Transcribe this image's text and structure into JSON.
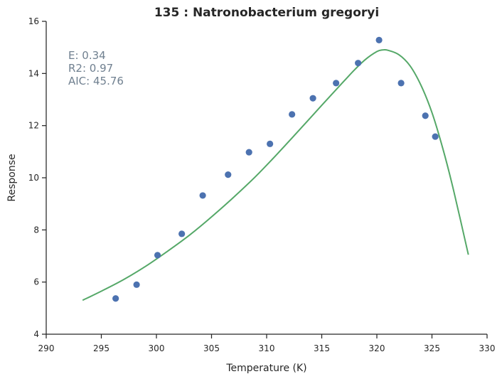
{
  "chart_data": {
    "type": "scatter",
    "title": "135 : Natronobacterium gregoryi",
    "xlabel": "Temperature (K)",
    "ylabel": "Response",
    "xlim": [
      290,
      330
    ],
    "ylim": [
      4,
      16
    ],
    "xticks": [
      "290",
      "295",
      "300",
      "305",
      "310",
      "315",
      "320",
      "325",
      "330"
    ],
    "yticks": [
      "4",
      "6",
      "8",
      "10",
      "12",
      "14",
      "16"
    ],
    "grid": false,
    "stats": {
      "e_label": "E:  0.34",
      "r2_label": "R2:  0.97",
      "aic_label": "AIC: 45.76"
    },
    "colors": {
      "points": "#4c72b0",
      "fit": "#55a868",
      "stats_text": "#708090"
    },
    "points": [
      {
        "x": 296.3,
        "y": 5.37
      },
      {
        "x": 298.2,
        "y": 5.9
      },
      {
        "x": 300.1,
        "y": 7.03
      },
      {
        "x": 302.3,
        "y": 7.85
      },
      {
        "x": 304.2,
        "y": 9.32
      },
      {
        "x": 306.5,
        "y": 10.12
      },
      {
        "x": 308.4,
        "y": 10.98
      },
      {
        "x": 310.3,
        "y": 11.3
      },
      {
        "x": 312.3,
        "y": 12.43
      },
      {
        "x": 314.2,
        "y": 13.05
      },
      {
        "x": 316.3,
        "y": 13.63
      },
      {
        "x": 318.3,
        "y": 14.4
      },
      {
        "x": 320.2,
        "y": 15.28
      },
      {
        "x": 322.2,
        "y": 13.63
      },
      {
        "x": 324.4,
        "y": 12.38
      },
      {
        "x": 325.3,
        "y": 11.58
      }
    ],
    "fit_curve": [
      {
        "x": 293.3,
        "y": 5.3
      },
      {
        "x": 295.0,
        "y": 5.65
      },
      {
        "x": 297.0,
        "y": 6.09
      },
      {
        "x": 299.0,
        "y": 6.6
      },
      {
        "x": 301.0,
        "y": 7.18
      },
      {
        "x": 303.0,
        "y": 7.8
      },
      {
        "x": 305.0,
        "y": 8.5
      },
      {
        "x": 307.0,
        "y": 9.25
      },
      {
        "x": 309.0,
        "y": 10.05
      },
      {
        "x": 311.0,
        "y": 10.93
      },
      {
        "x": 313.0,
        "y": 11.85
      },
      {
        "x": 315.0,
        "y": 12.78
      },
      {
        "x": 317.0,
        "y": 13.7
      },
      {
        "x": 318.0,
        "y": 14.15
      },
      {
        "x": 319.0,
        "y": 14.55
      },
      {
        "x": 320.0,
        "y": 14.84
      },
      {
        "x": 320.5,
        "y": 14.9
      },
      {
        "x": 321.0,
        "y": 14.89
      },
      {
        "x": 322.0,
        "y": 14.72
      },
      {
        "x": 323.0,
        "y": 14.3
      },
      {
        "x": 324.0,
        "y": 13.55
      },
      {
        "x": 325.0,
        "y": 12.5
      },
      {
        "x": 326.0,
        "y": 11.1
      },
      {
        "x": 327.0,
        "y": 9.45
      },
      {
        "x": 328.3,
        "y": 7.05
      }
    ]
  }
}
